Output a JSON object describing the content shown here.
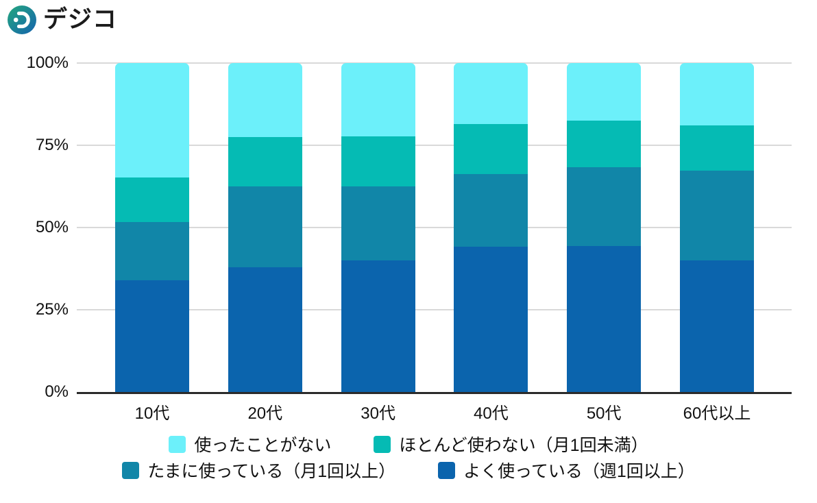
{
  "logo": {
    "text": "デジコ",
    "gradient": {
      "start": "#24A77E",
      "end": "#1563AE"
    }
  },
  "chart_data": {
    "type": "bar",
    "subtype": "stacked-100-percent",
    "title": "",
    "xlabel": "",
    "ylabel": "",
    "categories": [
      "10代",
      "20代",
      "30代",
      "40代",
      "50代",
      "60代以上"
    ],
    "series": [
      {
        "name": "よく使っている（週1回以上）",
        "color": "#0B64AD",
        "values": [
          34.0,
          38.0,
          40.1,
          44.1,
          44.4,
          39.9
        ]
      },
      {
        "name": "たまに使っている（月1回以上）",
        "color": "#1186A8",
        "values": [
          17.6,
          24.5,
          22.4,
          22.1,
          24.0,
          27.3
        ]
      },
      {
        "name": "ほとんど使わない（月1回未満）",
        "color": "#05BBB4",
        "values": [
          13.7,
          14.9,
          15.3,
          15.3,
          14.0,
          13.9
        ]
      },
      {
        "name": "使ったことがない",
        "color": "#6CF0FA",
        "values": [
          34.7,
          22.6,
          22.2,
          18.5,
          17.6,
          18.9
        ]
      }
    ],
    "y_ticks": [
      "0%",
      "25%",
      "50%",
      "75%",
      "100%"
    ],
    "ylim": [
      0,
      100
    ],
    "grid": true,
    "legend_position": "bottom",
    "legend_rows": [
      [
        "使ったことがない",
        "ほとんど使わない（月1回未満）"
      ],
      [
        "たまに使っている（月1回以上）",
        "よく使っている（週1回以上）"
      ]
    ]
  }
}
